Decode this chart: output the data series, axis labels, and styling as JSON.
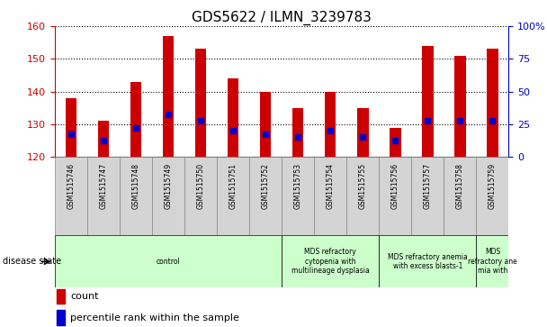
{
  "title": "GDS5622 / ILMN_3239783",
  "samples": [
    "GSM1515746",
    "GSM1515747",
    "GSM1515748",
    "GSM1515749",
    "GSM1515750",
    "GSM1515751",
    "GSM1515752",
    "GSM1515753",
    "GSM1515754",
    "GSM1515755",
    "GSM1515756",
    "GSM1515757",
    "GSM1515758",
    "GSM1515759"
  ],
  "counts": [
    138,
    131,
    143,
    157,
    153,
    144,
    140,
    135,
    140,
    135,
    129,
    154,
    151,
    153
  ],
  "percentile_ranks": [
    127,
    125,
    129,
    133,
    131,
    128,
    127,
    126,
    128,
    126,
    125,
    131,
    131,
    131
  ],
  "ylim_left": [
    120,
    160
  ],
  "ylim_right": [
    0,
    100
  ],
  "yticks_left": [
    120,
    130,
    140,
    150,
    160
  ],
  "yticks_right": [
    0,
    25,
    50,
    75,
    100
  ],
  "bar_color": "#cc0000",
  "dot_color": "#0000cc",
  "dot_size": 4,
  "bar_width": 0.35,
  "disease_groups": [
    {
      "label": "control",
      "start": 0,
      "end": 6
    },
    {
      "label": "MDS refractory\ncytopenia with\nmultilineage dysplasia",
      "start": 7,
      "end": 9
    },
    {
      "label": "MDS refractory anemia\nwith excess blasts-1",
      "start": 10,
      "end": 12
    },
    {
      "label": "MDS\nrefractory ane\nmia with",
      "start": 13,
      "end": 13
    }
  ],
  "legend_count_label": "count",
  "legend_pct_label": "percentile rank within the sample",
  "disease_state_label": "disease state",
  "right_axis_color": "#0000cc",
  "left_axis_color": "#cc0000",
  "light_green": "#ccffcc",
  "tick_bg_color": "#d4d4d4",
  "tick_border_color": "#888888"
}
